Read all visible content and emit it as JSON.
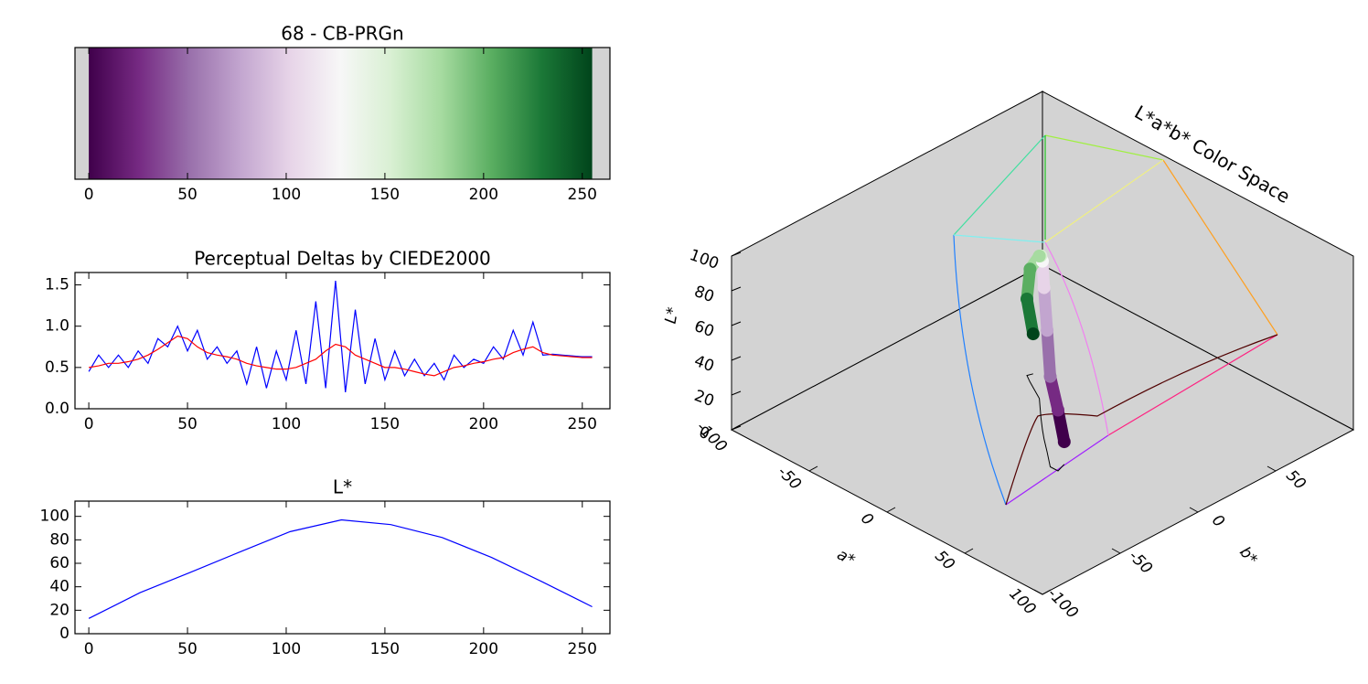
{
  "chart_data": [
    {
      "type": "colorbar",
      "title": "68 - CB-PRGn",
      "color_range": [
        0,
        255
      ],
      "colors": [
        "#40004b",
        "#762a83",
        "#9970ab",
        "#c2a5cf",
        "#e7d4e8",
        "#f7f7f7",
        "#d9f0d3",
        "#a6dba0",
        "#5aae61",
        "#1b7837",
        "#00441b"
      ],
      "xlim": [
        -7,
        264
      ],
      "xticks": [
        0,
        50,
        100,
        150,
        200,
        250
      ]
    },
    {
      "type": "line",
      "title": "Perceptual Deltas by CIEDE2000",
      "x": [
        0,
        5,
        10,
        15,
        20,
        25,
        30,
        35,
        40,
        45,
        50,
        55,
        60,
        65,
        70,
        75,
        80,
        85,
        90,
        95,
        100,
        105,
        110,
        115,
        120,
        125,
        130,
        135,
        140,
        145,
        150,
        155,
        160,
        165,
        170,
        175,
        180,
        185,
        190,
        195,
        200,
        205,
        210,
        215,
        220,
        225,
        230,
        235,
        240,
        245,
        250,
        255
      ],
      "series": [
        {
          "color": "#0000ff",
          "values": [
            0.45,
            0.65,
            0.5,
            0.65,
            0.5,
            0.7,
            0.55,
            0.85,
            0.75,
            1.0,
            0.7,
            0.95,
            0.6,
            0.75,
            0.55,
            0.7,
            0.3,
            0.75,
            0.25,
            0.7,
            0.35,
            0.95,
            0.3,
            1.3,
            0.25,
            1.55,
            0.2,
            1.2,
            0.3,
            0.85,
            0.35,
            0.7,
            0.4,
            0.6,
            0.4,
            0.55,
            0.35,
            0.65,
            0.5,
            0.6,
            0.55,
            0.75,
            0.6,
            0.95,
            0.65,
            1.05,
            0.65,
            0.66,
            0.65,
            0.64,
            0.63,
            0.63
          ]
        },
        {
          "color": "#ff0000",
          "values": [
            0.5,
            0.52,
            0.55,
            0.55,
            0.57,
            0.6,
            0.65,
            0.72,
            0.8,
            0.88,
            0.85,
            0.75,
            0.68,
            0.65,
            0.63,
            0.6,
            0.55,
            0.52,
            0.5,
            0.48,
            0.48,
            0.5,
            0.55,
            0.6,
            0.7,
            0.78,
            0.75,
            0.65,
            0.6,
            0.55,
            0.5,
            0.5,
            0.48,
            0.45,
            0.42,
            0.4,
            0.45,
            0.5,
            0.52,
            0.55,
            0.57,
            0.6,
            0.62,
            0.68,
            0.72,
            0.75,
            0.68,
            0.65,
            0.64,
            0.63,
            0.62,
            0.62
          ]
        }
      ],
      "xlim": [
        -7,
        264
      ],
      "xticks": [
        0,
        50,
        100,
        150,
        200,
        250
      ],
      "ylim": [
        0,
        1.65
      ],
      "yticks": [
        {
          "value": 0,
          "label": "0.0"
        },
        0.5,
        {
          "value": 1,
          "label": "1.0"
        },
        1.5
      ]
    },
    {
      "type": "line",
      "title": "L*",
      "x": [
        0,
        26,
        51,
        77,
        102,
        128,
        153,
        179,
        204,
        230,
        255
      ],
      "series": [
        {
          "color": "#0000ff",
          "values": [
            13,
            35,
            52,
            70,
            87,
            97,
            93,
            82,
            65,
            44,
            23
          ]
        }
      ],
      "xlim": [
        -7,
        264
      ],
      "xticks": [
        0,
        50,
        100,
        150,
        200,
        250
      ],
      "ylim": [
        0,
        113
      ],
      "yticks": [
        0,
        20,
        40,
        60,
        80,
        100
      ]
    },
    {
      "type": "scatter3d",
      "title": "L*a*b* Color Space",
      "xlabel": "a*",
      "ylabel": "b*",
      "zlabel": "L*",
      "xlim": [
        -100,
        100
      ],
      "ylim": [
        -100,
        100
      ],
      "zlim": [
        0,
        100
      ],
      "xticks": [
        -100,
        -50,
        0,
        50,
        100
      ],
      "yticks": [
        -100,
        -50,
        0,
        50
      ],
      "zticks": [
        0,
        20,
        40,
        60,
        80,
        100
      ],
      "points": {
        "a": [
          28,
          30,
          25,
          15,
          6,
          0,
          -8,
          -20,
          -33,
          -38,
          -37
        ],
        "b": [
          -14,
          -20,
          -20,
          -12,
          -5,
          0,
          7,
          18,
          25,
          28,
          31
        ],
        "L": [
          13,
          35,
          52,
          70,
          87,
          97,
          93,
          82,
          65,
          44,
          23
        ],
        "colors": [
          "#40004b",
          "#762a83",
          "#9970ab",
          "#c2a5cf",
          "#e7d4e8",
          "#f7f7f7",
          "#d9f0d3",
          "#a6dba0",
          "#5aae61",
          "#1b7837",
          "#00441b"
        ]
      }
    }
  ]
}
